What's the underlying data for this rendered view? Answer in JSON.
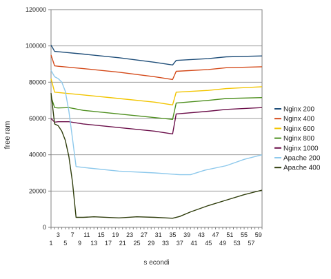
{
  "chart_data": {
    "type": "line",
    "title": "",
    "xlabel": "s econdi",
    "ylabel": "free ram",
    "ylim": [
      0,
      120000
    ],
    "yticks": [
      0,
      20000,
      40000,
      60000,
      80000,
      100000,
      120000
    ],
    "ytick_labels": [
      "0",
      "20000",
      "40000",
      "60000",
      "80000",
      "100000",
      "120000"
    ],
    "xlim": [
      1,
      60
    ],
    "xticks_odd": [
      "1",
      "5",
      "9",
      "13",
      "17",
      "21",
      "25",
      "29",
      "33",
      "37",
      "41",
      "45",
      "49",
      "53",
      "57"
    ],
    "xticks_even": [
      "3",
      "7",
      "11",
      "15",
      "19",
      "23",
      "27",
      "31",
      "35",
      "39",
      "43",
      "47",
      "51",
      "55",
      "59"
    ],
    "xtick_values_odd": [
      1,
      5,
      9,
      13,
      17,
      21,
      25,
      29,
      33,
      37,
      41,
      45,
      49,
      53,
      57
    ],
    "xtick_values_even": [
      3,
      7,
      11,
      15,
      19,
      23,
      27,
      31,
      35,
      39,
      43,
      47,
      51,
      55,
      59
    ],
    "grid": "horizontal",
    "legend_position": "right",
    "series": [
      {
        "name": "Nginx 200",
        "color": "#1f4e79",
        "points": [
          [
            1,
            100500
          ],
          [
            2,
            97000
          ],
          [
            3,
            96800
          ],
          [
            10,
            95500
          ],
          [
            20,
            93500
          ],
          [
            30,
            91000
          ],
          [
            35,
            89500
          ],
          [
            36,
            92000
          ],
          [
            45,
            93000
          ],
          [
            50,
            94000
          ],
          [
            60,
            94500
          ]
        ]
      },
      {
        "name": "Nginx 400",
        "color": "#d44a1a",
        "points": [
          [
            1,
            95000
          ],
          [
            2,
            89000
          ],
          [
            3,
            88800
          ],
          [
            10,
            87500
          ],
          [
            20,
            85500
          ],
          [
            30,
            83000
          ],
          [
            35,
            81500
          ],
          [
            36,
            86000
          ],
          [
            45,
            87000
          ],
          [
            50,
            88000
          ],
          [
            60,
            88500
          ]
        ]
      },
      {
        "name": "Nginx 600",
        "color": "#f2c500",
        "points": [
          [
            1,
            82000
          ],
          [
            2,
            74500
          ],
          [
            3,
            74300
          ],
          [
            10,
            73000
          ],
          [
            20,
            71000
          ],
          [
            30,
            69000
          ],
          [
            35,
            67500
          ],
          [
            36,
            74500
          ],
          [
            45,
            75500
          ],
          [
            50,
            76500
          ],
          [
            60,
            77500
          ]
        ]
      },
      {
        "name": "Nginx 800",
        "color": "#4e8f1f",
        "points": [
          [
            1,
            72000
          ],
          [
            2,
            66000
          ],
          [
            3,
            65800
          ],
          [
            6,
            66000
          ],
          [
            10,
            64500
          ],
          [
            20,
            62500
          ],
          [
            30,
            60500
          ],
          [
            35,
            59500
          ],
          [
            36,
            68500
          ],
          [
            45,
            70000
          ],
          [
            50,
            71000
          ],
          [
            60,
            71500
          ]
        ]
      },
      {
        "name": "Nginx 1000",
        "color": "#6b0f4a",
        "points": [
          [
            1,
            60000
          ],
          [
            2,
            58000
          ],
          [
            3,
            58200
          ],
          [
            6,
            58200
          ],
          [
            10,
            57000
          ],
          [
            20,
            55000
          ],
          [
            30,
            53000
          ],
          [
            35,
            51500
          ],
          [
            36,
            62500
          ],
          [
            45,
            64000
          ],
          [
            50,
            65000
          ],
          [
            60,
            66000
          ]
        ]
      },
      {
        "name": "Apache 200",
        "color": "#8ec9ec",
        "points": [
          [
            1,
            86500
          ],
          [
            2,
            83000
          ],
          [
            3,
            82000
          ],
          [
            4,
            80000
          ],
          [
            5,
            75000
          ],
          [
            6,
            64000
          ],
          [
            7,
            49000
          ],
          [
            8,
            33500
          ],
          [
            10,
            33000
          ],
          [
            20,
            31000
          ],
          [
            30,
            30000
          ],
          [
            37,
            29000
          ],
          [
            40,
            29000
          ],
          [
            44,
            31500
          ],
          [
            50,
            34000
          ],
          [
            55,
            37500
          ],
          [
            60,
            40000
          ]
        ]
      },
      {
        "name": "Apache 400",
        "color": "#2f3d0c",
        "points": [
          [
            1,
            74000
          ],
          [
            2,
            57000
          ],
          [
            3,
            56000
          ],
          [
            4,
            53000
          ],
          [
            5,
            48000
          ],
          [
            6,
            39000
          ],
          [
            7,
            25000
          ],
          [
            8,
            5500
          ],
          [
            10,
            5500
          ],
          [
            13,
            5800
          ],
          [
            20,
            5200
          ],
          [
            25,
            5800
          ],
          [
            30,
            5500
          ],
          [
            35,
            5000
          ],
          [
            37,
            6000
          ],
          [
            40,
            8500
          ],
          [
            45,
            12000
          ],
          [
            50,
            15000
          ],
          [
            55,
            18000
          ],
          [
            60,
            20500
          ]
        ]
      }
    ]
  }
}
